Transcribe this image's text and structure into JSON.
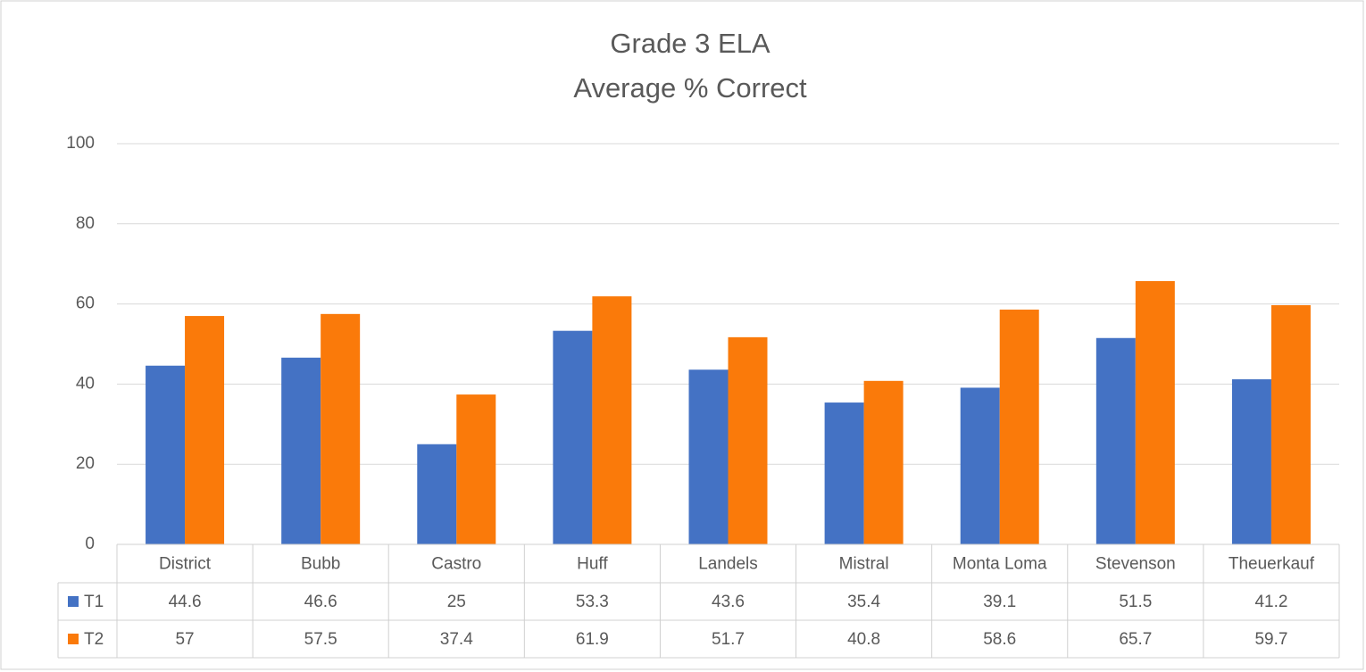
{
  "chart_data": {
    "type": "bar",
    "title": [
      "Grade 3 ELA",
      "Average % Correct"
    ],
    "categories": [
      "District",
      "Bubb",
      "Castro",
      "Huff",
      "Landels",
      "Mistral",
      "Monta Loma",
      "Stevenson",
      "Theuerkauf"
    ],
    "series": [
      {
        "name": "T1",
        "color": "#4472c4",
        "values": [
          44.6,
          46.6,
          25,
          53.3,
          43.6,
          35.4,
          39.1,
          51.5,
          41.2
        ]
      },
      {
        "name": "T2",
        "color": "#fa7a0a",
        "values": [
          57,
          57.5,
          37.4,
          61.9,
          51.7,
          40.8,
          58.6,
          65.7,
          59.7
        ]
      }
    ],
    "ylim": [
      0,
      100
    ],
    "yticks": [
      0,
      20,
      40,
      60,
      80,
      100
    ],
    "grid": true
  }
}
